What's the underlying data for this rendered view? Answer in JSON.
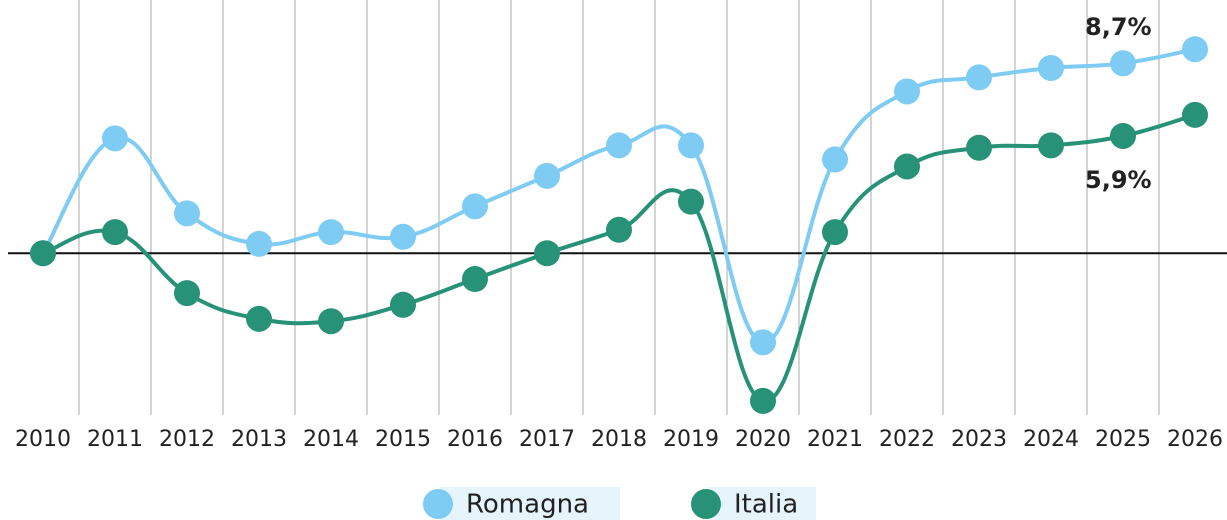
{
  "chart_data": {
    "type": "line",
    "categories": [
      "2010",
      "2011",
      "2012",
      "2013",
      "2014",
      "2015",
      "2016",
      "2017",
      "2018",
      "2019",
      "2020",
      "2021",
      "2022",
      "2023",
      "2024",
      "2025",
      "2026"
    ],
    "series": [
      {
        "name": "Romagna",
        "color": "#7ecbf3",
        "values": [
          0,
          4.9,
          1.7,
          0.4,
          0.9,
          0.7,
          2.0,
          3.3,
          4.6,
          4.6,
          -3.8,
          4.0,
          6.9,
          7.5,
          7.9,
          8.1,
          8.7
        ]
      },
      {
        "name": "Italia",
        "color": "#279277",
        "values": [
          0,
          0.9,
          -1.7,
          -2.8,
          -2.9,
          -2.2,
          -1.1,
          0,
          1.0,
          2.2,
          -6.3,
          0.9,
          3.7,
          4.5,
          4.6,
          5.0,
          5.9
        ]
      }
    ],
    "annotations": [
      "8,7%",
      "5,9%"
    ],
    "ylim": [
      -6.9,
      10.8
    ]
  }
}
